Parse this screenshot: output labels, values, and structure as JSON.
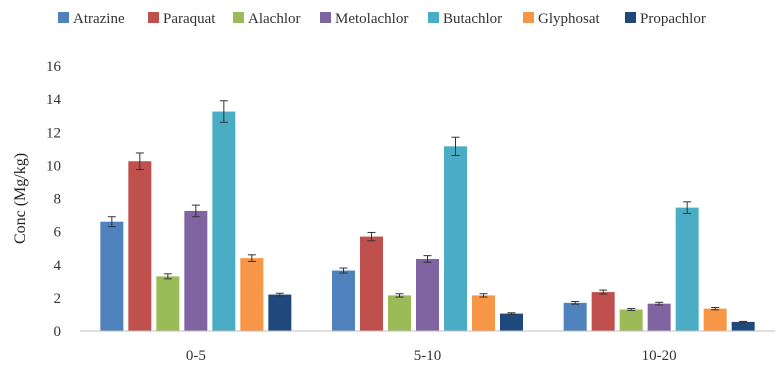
{
  "chart_data": {
    "type": "bar",
    "title": "",
    "xlabel": "",
    "ylabel": "Conc (Mg/kg)",
    "ylim": [
      0,
      16
    ],
    "yticks": [
      0,
      2,
      4,
      6,
      8,
      10,
      12,
      14,
      16
    ],
    "grid": false,
    "legend_position": "top",
    "categories": [
      "0-5",
      "5-10",
      "10-20"
    ],
    "series": [
      {
        "name": "Atrazine",
        "color": "#4f81bd",
        "values": [
          6.6,
          3.65,
          1.7
        ],
        "errors": [
          0.3,
          0.15,
          0.08
        ]
      },
      {
        "name": "Paraquat",
        "color": "#c0504d",
        "values": [
          10.25,
          5.7,
          2.35
        ],
        "errors": [
          0.5,
          0.25,
          0.12
        ]
      },
      {
        "name": "Alachlor",
        "color": "#9bbb59",
        "values": [
          3.3,
          2.15,
          1.3
        ],
        "errors": [
          0.15,
          0.1,
          0.06
        ]
      },
      {
        "name": "Metolachlor",
        "color": "#8064a2",
        "values": [
          7.25,
          4.35,
          1.65
        ],
        "errors": [
          0.35,
          0.2,
          0.08
        ]
      },
      {
        "name": "Butachlor",
        "color": "#4bacc6",
        "values": [
          13.25,
          11.15,
          7.45
        ],
        "errors": [
          0.65,
          0.55,
          0.35
        ]
      },
      {
        "name": "Glyphosat",
        "color": "#f79646",
        "values": [
          4.4,
          2.15,
          1.35
        ],
        "errors": [
          0.2,
          0.1,
          0.07
        ]
      },
      {
        "name": "Propachlor",
        "color": "#1f497d",
        "values": [
          2.2,
          1.05,
          0.55
        ],
        "errors": [
          0.08,
          0.05,
          0.03
        ]
      }
    ]
  }
}
